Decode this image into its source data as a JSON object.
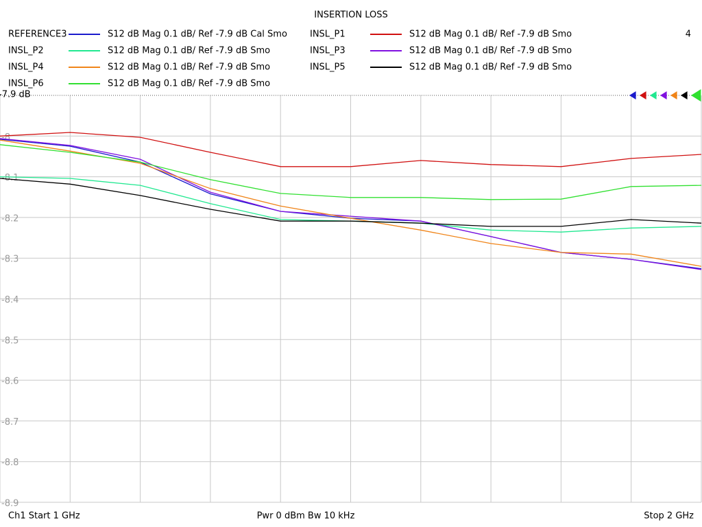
{
  "chart_data": {
    "type": "line",
    "title": "INSERTION LOSS",
    "marker_count": "4",
    "footer": {
      "left": "Ch1  Start  1 GHz",
      "center": "Pwr  0 dBm  Bw  10 kHz",
      "right": "Stop  2 GHz"
    },
    "x": [
      1.0,
      1.1,
      1.2,
      1.3,
      1.4,
      1.5,
      1.6,
      1.7,
      1.8,
      1.9,
      2.0
    ],
    "xlim": [
      1,
      2
    ],
    "xticks": [
      1.0,
      1.1,
      1.2,
      1.3,
      1.4,
      1.5,
      1.6,
      1.7,
      1.8,
      1.9,
      2.0
    ],
    "ylim": [
      -8.9,
      -7.9
    ],
    "yticks": [
      {
        "value": -7.9,
        "label": "-7.9 dB"
      },
      -8,
      -8.1,
      -8.2,
      -8.3,
      -8.4,
      -8.5,
      -8.6,
      -8.7,
      -8.8,
      -8.9
    ],
    "grid": true,
    "series": [
      {
        "name": "REFERENCE3",
        "description": "S12  dB Mag  0.1 dB/ Ref -7.9 dB  Cal Smo",
        "color": "#1a1acc",
        "values": [
          -8.008,
          -8.025,
          -8.064,
          -8.142,
          -8.185,
          -8.202,
          -8.209,
          -8.247,
          -8.286,
          -8.303,
          -8.326
        ]
      },
      {
        "name": "INSL_P1",
        "description": "S12  dB Mag  0.1 dB/ Ref -7.9 dB  Smo",
        "color": "#d01010",
        "values": [
          -8.0,
          -7.991,
          -8.003,
          -8.04,
          -8.075,
          -8.075,
          -8.06,
          -8.07,
          -8.075,
          -8.055,
          -8.045
        ]
      },
      {
        "name": "INSL_P2",
        "description": "S12  dB Mag  0.1 dB/ Ref -7.9 dB  Smo",
        "color": "#20e890",
        "values": [
          -8.1,
          -8.104,
          -8.121,
          -8.166,
          -8.205,
          -8.209,
          -8.214,
          -8.231,
          -8.236,
          -8.226,
          -8.222
        ]
      },
      {
        "name": "INSL_P3",
        "description": "S12  dB Mag  0.1 dB/ Ref -7.9 dB  Smo",
        "color": "#8010e0",
        "values": [
          -8.006,
          -8.023,
          -8.057,
          -8.138,
          -8.185,
          -8.197,
          -8.209,
          -8.247,
          -8.286,
          -8.303,
          -8.328
        ]
      },
      {
        "name": "INSL_P4",
        "description": "S12  dB Mag  0.1 dB/ Ref -7.9 dB  Smo",
        "color": "#f08418",
        "values": [
          -8.01,
          -8.037,
          -8.067,
          -8.129,
          -8.172,
          -8.202,
          -8.231,
          -8.264,
          -8.286,
          -8.29,
          -8.32
        ]
      },
      {
        "name": "INSL_P5",
        "description": "S12  dB Mag  0.1 dB/ Ref -7.9 dB  Smo",
        "color": "#000000",
        "values": [
          -8.104,
          -8.118,
          -8.146,
          -8.18,
          -8.209,
          -8.209,
          -8.214,
          -8.222,
          -8.222,
          -8.205,
          -8.214
        ]
      },
      {
        "name": "INSL_P6",
        "description": "S12  dB Mag  0.1 dB/ Ref -7.9 dB  Smo",
        "color": "#30e030",
        "values": [
          -8.021,
          -8.04,
          -8.064,
          -8.107,
          -8.141,
          -8.151,
          -8.151,
          -8.156,
          -8.155,
          -8.124,
          -8.121
        ]
      }
    ]
  }
}
